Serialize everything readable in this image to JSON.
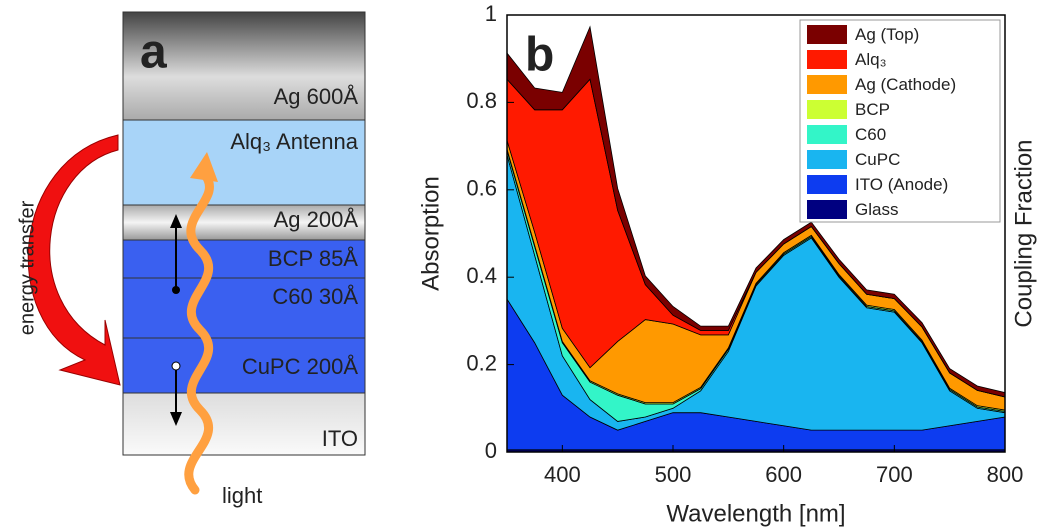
{
  "panel_a": {
    "label": "a",
    "layers": [
      "Ag 600Å",
      "Alq₃ Antenna",
      "Ag 200Å",
      "BCP 85Å",
      "C60 30Å",
      "CuPC 200Å",
      "ITO"
    ],
    "energy_transfer": "energy transfer",
    "light": "light"
  },
  "chart_data": {
    "type": "stacked-area",
    "label": "b",
    "xlabel": "Wavelength [nm]",
    "ylabel": "Absorption",
    "y2label": "Coupling Fraction",
    "x": [
      350,
      375,
      400,
      425,
      450,
      475,
      500,
      525,
      550,
      575,
      600,
      625,
      650,
      675,
      700,
      725,
      750,
      775,
      800
    ],
    "xlim": [
      350,
      800
    ],
    "xticks": [
      400,
      500,
      600,
      700,
      800
    ],
    "ylim": [
      0,
      1
    ],
    "yticks": [
      0,
      0.2,
      0.4,
      0.6,
      0.8,
      1
    ],
    "legend": "upper right",
    "series": [
      {
        "name": "Glass",
        "color": "#000080",
        "values": [
          0.005,
          0.005,
          0.005,
          0.005,
          0.005,
          0.005,
          0.005,
          0.005,
          0.005,
          0.005,
          0.005,
          0.005,
          0.005,
          0.005,
          0.005,
          0.005,
          0.005,
          0.005,
          0.005
        ]
      },
      {
        "name": "ITO (Anode)",
        "color": "#0d3cf0",
        "values": [
          0.345,
          0.245,
          0.125,
          0.075,
          0.045,
          0.065,
          0.085,
          0.085,
          0.075,
          0.065,
          0.055,
          0.045,
          0.045,
          0.045,
          0.045,
          0.045,
          0.055,
          0.065,
          0.075
        ]
      },
      {
        "name": "CuPC",
        "color": "#19b5f0",
        "values": [
          0.33,
          0.2,
          0.09,
          0.04,
          0.02,
          0.01,
          0.01,
          0.05,
          0.15,
          0.31,
          0.39,
          0.44,
          0.35,
          0.28,
          0.27,
          0.2,
          0.08,
          0.03,
          0.01
        ]
      },
      {
        "name": "C60",
        "color": "#33f5c8",
        "values": [
          0.01,
          0.02,
          0.03,
          0.04,
          0.06,
          0.03,
          0.01,
          0.005,
          0.005,
          0.003,
          0.003,
          0.003,
          0.003,
          0.003,
          0.003,
          0.003,
          0.003,
          0.003,
          0.003
        ]
      },
      {
        "name": "BCP",
        "color": "#ccff33",
        "values": [
          0.003,
          0.003,
          0.003,
          0.003,
          0.003,
          0.003,
          0.003,
          0.003,
          0.003,
          0.003,
          0.003,
          0.003,
          0.003,
          0.003,
          0.003,
          0.003,
          0.003,
          0.003,
          0.003
        ]
      },
      {
        "name": "Ag (Cathode)",
        "color": "#ff9900",
        "values": [
          0.02,
          0.03,
          0.03,
          0.03,
          0.12,
          0.19,
          0.18,
          0.12,
          0.03,
          0.025,
          0.02,
          0.02,
          0.025,
          0.025,
          0.025,
          0.03,
          0.035,
          0.035,
          0.03
        ]
      },
      {
        "name": "Alq₃",
        "color": "#ff1a00",
        "values": [
          0.14,
          0.28,
          0.5,
          0.66,
          0.3,
          0.08,
          0.02,
          0.01,
          0.01,
          0,
          0,
          0,
          0,
          0,
          0,
          0,
          0,
          0,
          0
        ]
      },
      {
        "name": "Ag (Top)",
        "color": "#7a0000",
        "values": [
          0.06,
          0.05,
          0.04,
          0.12,
          0.05,
          0.02,
          0.02,
          0.01,
          0.01,
          0.01,
          0.01,
          0.01,
          0.01,
          0.01,
          0.01,
          0.01,
          0.01,
          0.01,
          0.01
        ]
      }
    ]
  }
}
